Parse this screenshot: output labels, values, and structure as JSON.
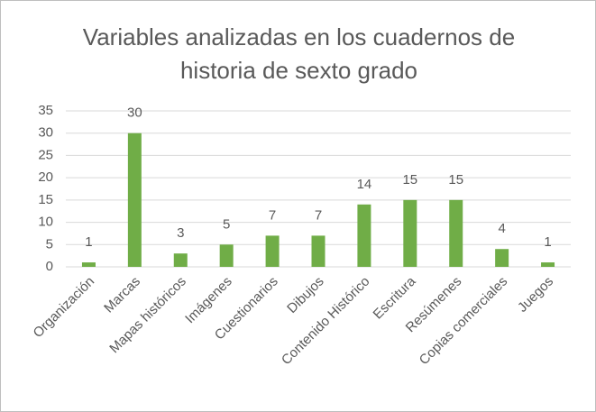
{
  "chart_data": {
    "type": "bar",
    "title": "Variables analizadas en los cuadernos de historia de sexto grado",
    "categories": [
      "Organización",
      "Marcas",
      "Mapas históricos",
      "Imágenes",
      "Cuestionarios",
      "Dibujos",
      "Contenido Histórico",
      "Escritura",
      "Resúmenes",
      "Copias comerciales",
      "Juegos"
    ],
    "values": [
      1,
      30,
      3,
      5,
      7,
      7,
      14,
      15,
      15,
      4,
      1
    ],
    "color": "#70ad47",
    "ylim": [
      0,
      35
    ],
    "yticks": [
      0,
      5,
      10,
      15,
      20,
      25,
      30,
      35
    ],
    "grid": true
  }
}
